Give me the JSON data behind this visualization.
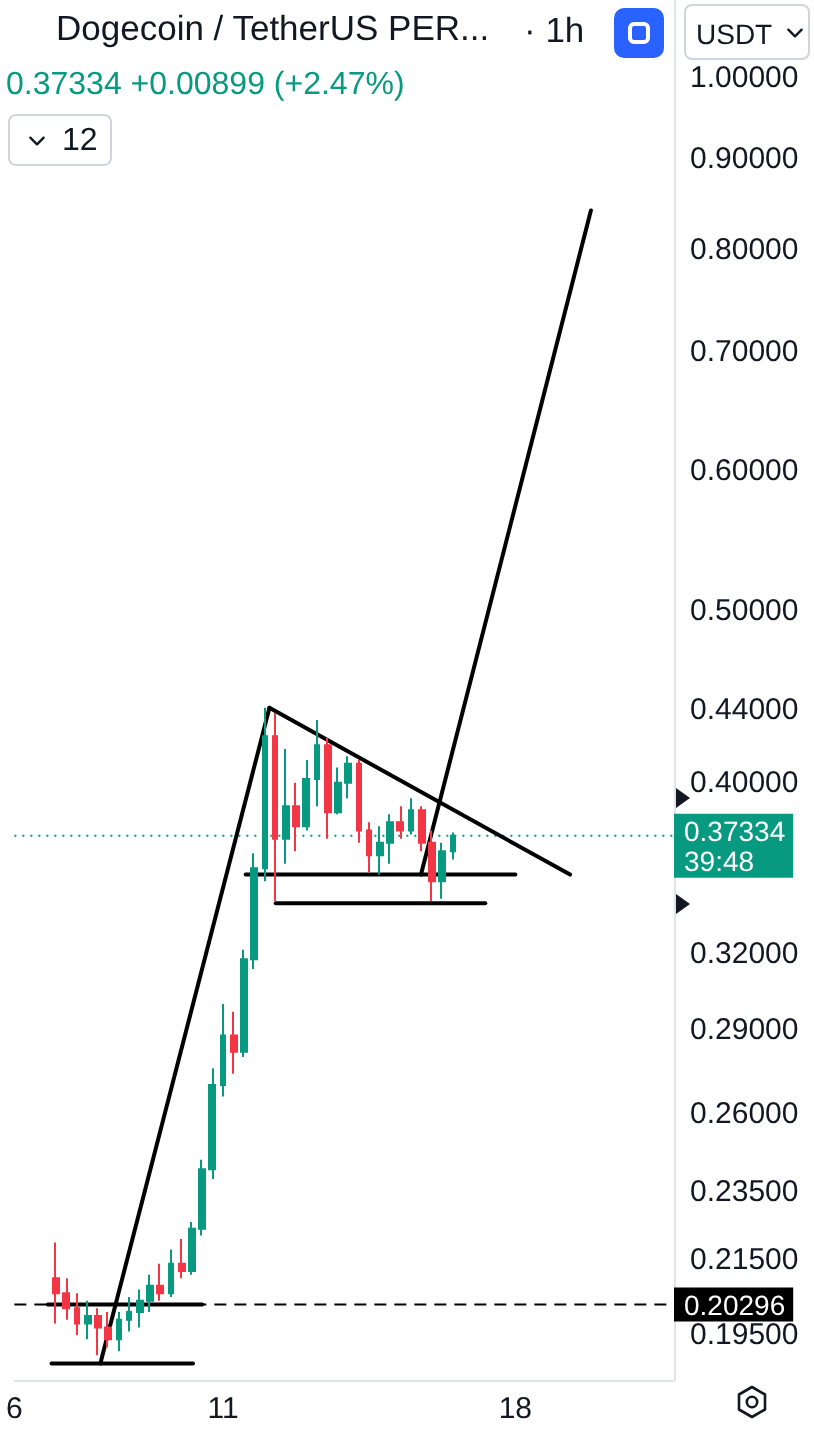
{
  "chart_data": {
    "type": "candlestick",
    "title": "Dogecoin / TetherUS PER...",
    "subtitle": "0.37334 +0.00899 (+2.47%)",
    "annotations": [
      "· 1h",
      "USDT",
      "12"
    ],
    "x": [
      7,
      7.25,
      7.5,
      7.75,
      8,
      8.25,
      8.5,
      8.75,
      9,
      9.25,
      9.5,
      9.75,
      10,
      10.25,
      10.5,
      10.75,
      11,
      11.25,
      11.5,
      11.75,
      12,
      12.25,
      12.5,
      12.75,
      13,
      13.25,
      13.5,
      13.75,
      14,
      14.25,
      14.5,
      14.75,
      15,
      15.25,
      15.5,
      15.75,
      16,
      16.25,
      16.5
    ],
    "ohlc": [
      [
        0.21,
        0.22,
        0.198,
        0.206
      ],
      [
        0.206,
        0.21,
        0.199,
        0.202
      ],
      [
        0.202,
        0.206,
        0.195,
        0.198
      ],
      [
        0.198,
        0.204,
        0.194,
        0.2
      ],
      [
        0.2,
        0.202,
        0.19,
        0.197
      ],
      [
        0.197,
        0.201,
        0.192,
        0.194
      ],
      [
        0.194,
        0.201,
        0.191,
        0.199
      ],
      [
        0.199,
        0.205,
        0.196,
        0.201
      ],
      [
        0.201,
        0.207,
        0.197,
        0.204
      ],
      [
        0.204,
        0.211,
        0.201,
        0.208
      ],
      [
        0.208,
        0.214,
        0.204,
        0.206
      ],
      [
        0.206,
        0.218,
        0.205,
        0.214
      ],
      [
        0.214,
        0.221,
        0.21,
        0.212
      ],
      [
        0.212,
        0.226,
        0.211,
        0.224
      ],
      [
        0.224,
        0.245,
        0.222,
        0.242
      ],
      [
        0.242,
        0.276,
        0.239,
        0.27
      ],
      [
        0.27,
        0.3,
        0.266,
        0.288
      ],
      [
        0.288,
        0.297,
        0.274,
        0.282
      ],
      [
        0.282,
        0.322,
        0.28,
        0.318
      ],
      [
        0.318,
        0.365,
        0.314,
        0.358
      ],
      [
        0.358,
        0.441,
        0.352,
        0.425
      ],
      [
        0.425,
        0.438,
        0.343,
        0.372
      ],
      [
        0.372,
        0.418,
        0.36,
        0.388
      ],
      [
        0.388,
        0.4,
        0.366,
        0.378
      ],
      [
        0.378,
        0.412,
        0.376,
        0.402
      ],
      [
        0.402,
        0.434,
        0.388,
        0.42
      ],
      [
        0.42,
        0.424,
        0.372,
        0.385
      ],
      [
        0.385,
        0.408,
        0.384,
        0.4
      ],
      [
        0.4,
        0.414,
        0.392,
        0.41
      ],
      [
        0.41,
        0.412,
        0.37,
        0.376
      ],
      [
        0.376,
        0.38,
        0.356,
        0.364
      ],
      [
        0.364,
        0.378,
        0.355,
        0.37
      ],
      [
        0.37,
        0.384,
        0.36,
        0.38
      ],
      [
        0.38,
        0.388,
        0.372,
        0.376
      ],
      [
        0.376,
        0.392,
        0.374,
        0.386
      ],
      [
        0.386,
        0.388,
        0.366,
        0.37
      ],
      [
        0.37,
        0.376,
        0.343,
        0.352
      ],
      [
        0.352,
        0.37,
        0.344,
        0.366
      ],
      [
        0.366,
        0.375,
        0.362,
        0.37334
      ]
    ],
    "colors": [
      "#f23645",
      "#f23645",
      "#f23645",
      "#089981",
      "#f23645",
      "#f23645",
      "#089981",
      "#089981",
      "#089981",
      "#089981",
      "#f23645",
      "#089981",
      "#f23645",
      "#089981",
      "#089981",
      "#089981",
      "#089981",
      "#f23645",
      "#089981",
      "#089981",
      "#089981",
      "#f23645",
      "#089981",
      "#f23645",
      "#089981",
      "#089981",
      "#f23645",
      "#089981",
      "#089981",
      "#f23645",
      "#f23645",
      "#089981",
      "#089981",
      "#f23645",
      "#089981",
      "#f23645",
      "#f23645",
      "#089981",
      "#089981"
    ],
    "series": [
      {
        "type": "line",
        "color": "#000000",
        "x": [
          8.06,
          12.11
        ],
        "values": [
          0.188,
          0.441
        ]
      },
      {
        "type": "line",
        "color": "#000000",
        "x": [
          12.11,
          19.31
        ],
        "values": [
          0.441,
          0.355
        ]
      },
      {
        "type": "line",
        "color": "#000000",
        "x": [
          11.54,
          18.0
        ],
        "values": [
          0.355,
          0.355
        ]
      },
      {
        "type": "line",
        "color": "#000000",
        "x": [
          12.26,
          17.28
        ],
        "values": [
          0.342,
          0.342
        ]
      },
      {
        "type": "line",
        "color": "#000000",
        "x": [
          15.74,
          19.81
        ],
        "values": [
          0.355,
          0.842
        ]
      },
      {
        "type": "line",
        "color": "#000000",
        "x": [
          6.8,
          10.5
        ],
        "values": [
          0.203,
          0.203
        ]
      },
      {
        "type": "line",
        "color": "#000000",
        "x": [
          6.89,
          10.28
        ],
        "values": [
          0.188,
          0.188
        ]
      }
    ],
    "ref_lines": [
      {
        "axis": "y",
        "value": 0.37334,
        "label": "0.37334\n39:48",
        "color": "#089981",
        "line_style": "dotted"
      },
      {
        "axis": "y",
        "value": 0.20296,
        "label": "0.20296",
        "color": "#000000",
        "line_style": "dashed"
      }
    ],
    "log": "y",
    "xlim": [
      6,
      21.8
    ],
    "xticks": [
      6,
      11,
      18
    ],
    "ylim": [
      0.184,
      1.107
    ],
    "yticks": [
      {
        "value": 1,
        "label": "1.00000"
      },
      {
        "value": 0.9,
        "label": "0.90000"
      },
      {
        "value": 0.8,
        "label": "0.80000"
      },
      {
        "value": 0.7,
        "label": "0.70000"
      },
      {
        "value": 0.6,
        "label": "0.60000"
      },
      {
        "value": 0.5,
        "label": "0.50000"
      },
      {
        "value": 0.44,
        "label": "0.44000"
      },
      {
        "value": 0.4,
        "label": "0.40000"
      },
      {
        "value": 0.32,
        "label": "0.32000"
      },
      {
        "value": 0.29,
        "label": "0.29000"
      },
      {
        "value": 0.26,
        "label": "0.26000"
      },
      {
        "value": 0.235,
        "label": "0.23500"
      },
      {
        "value": 0.215,
        "label": "0.21500"
      },
      {
        "value": 0.195,
        "label": "0.19500"
      }
    ],
    "grid": false
  }
}
